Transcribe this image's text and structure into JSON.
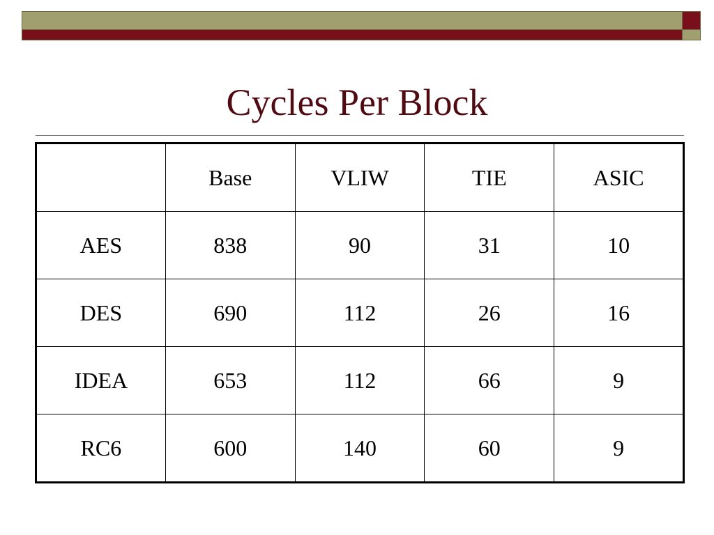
{
  "slide": {
    "title": "Cycles Per Block",
    "colors": {
      "title": "#4f0a12",
      "olive": "#a19e6f",
      "maroon": "#7a0f1c"
    }
  },
  "table": {
    "header": [
      "",
      "Base",
      "VLIW",
      "TIE",
      "ASIC"
    ],
    "rows": [
      [
        "AES",
        "838",
        "90",
        "31",
        "10"
      ],
      [
        "DES",
        "690",
        "112",
        "26",
        "16"
      ],
      [
        "IDEA",
        "653",
        "112",
        "66",
        "9"
      ],
      [
        "RC6",
        "600",
        "140",
        "60",
        "9"
      ]
    ]
  }
}
